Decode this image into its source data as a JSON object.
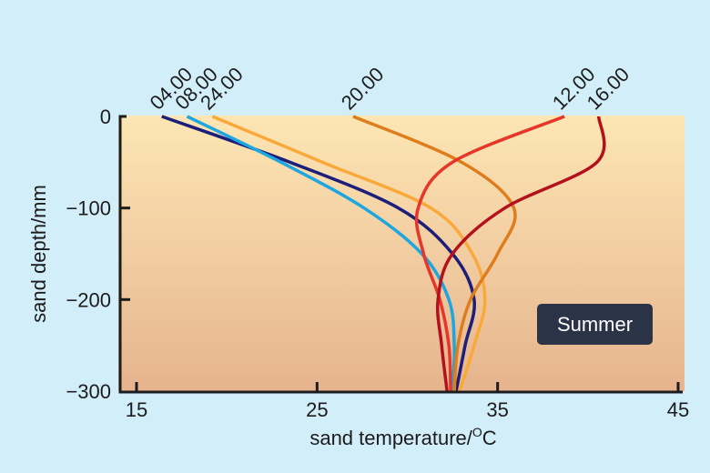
{
  "chart_data": {
    "type": "line",
    "title": "",
    "xlabel": "sand temperature/°C",
    "ylabel": "sand depth/mm",
    "xlim": [
      14,
      45.3
    ],
    "ylim": [
      -300,
      0
    ],
    "xticks": [
      15,
      25,
      35,
      45
    ],
    "yticks": [
      0,
      -100,
      -200,
      -300
    ],
    "grid": false,
    "legend_position": "labels at top of each curve",
    "annotation": "Summer",
    "series": [
      {
        "name": "04.00",
        "color": "#1c1f7a",
        "depth": [
          0,
          -50,
          -100,
          -150,
          -200,
          -250,
          -300
        ],
        "temp": [
          16.4,
          23.5,
          29.5,
          32.5,
          33.7,
          33.2,
          32.7
        ]
      },
      {
        "name": "08.00",
        "color": "#1ea6e0",
        "depth": [
          0,
          -50,
          -100,
          -150,
          -200,
          -250,
          -300
        ],
        "temp": [
          17.8,
          23.0,
          27.6,
          30.8,
          32.3,
          32.6,
          32.5
        ]
      },
      {
        "name": "24.00",
        "color": "#f9a93a",
        "depth": [
          0,
          -50,
          -100,
          -150,
          -200,
          -250,
          -300
        ],
        "temp": [
          19.2,
          25.3,
          31.3,
          33.6,
          34.3,
          33.7,
          32.9
        ]
      },
      {
        "name": "20.00",
        "color": "#de7d1d",
        "depth": [
          0,
          -50,
          -100,
          -150,
          -200,
          -250,
          -300
        ],
        "temp": [
          27.0,
          33.0,
          35.9,
          35.0,
          33.5,
          32.8,
          32.6
        ]
      },
      {
        "name": "12.00",
        "color": "#e6362a",
        "depth": [
          0,
          -50,
          -100,
          -150,
          -200,
          -250,
          -300
        ],
        "temp": [
          38.7,
          32.5,
          30.6,
          30.9,
          31.8,
          32.3,
          32.4
        ]
      },
      {
        "name": "16.00",
        "color": "#b3121c",
        "depth": [
          0,
          -50,
          -100,
          -150,
          -200,
          -250,
          -300
        ],
        "temp": [
          40.6,
          40.5,
          35.4,
          32.5,
          31.7,
          31.9,
          32.2
        ]
      }
    ]
  },
  "axes": {
    "x_title": "sand temperature/",
    "x_title_unit_sup": "O",
    "x_title_unit": "C",
    "y_title": "sand depth/mm",
    "x_tick_labels": [
      "15",
      "25",
      "35",
      "45"
    ],
    "y_tick_labels": [
      "0",
      "−100",
      "−200",
      "−300"
    ]
  },
  "badge": {
    "label": "Summer"
  },
  "colors": {
    "background": "#d2eef9",
    "plot_top": "#fde6b4",
    "plot_bottom": "#e6b48e",
    "axis": "#1c1c1c",
    "badge": "#2b3447"
  }
}
